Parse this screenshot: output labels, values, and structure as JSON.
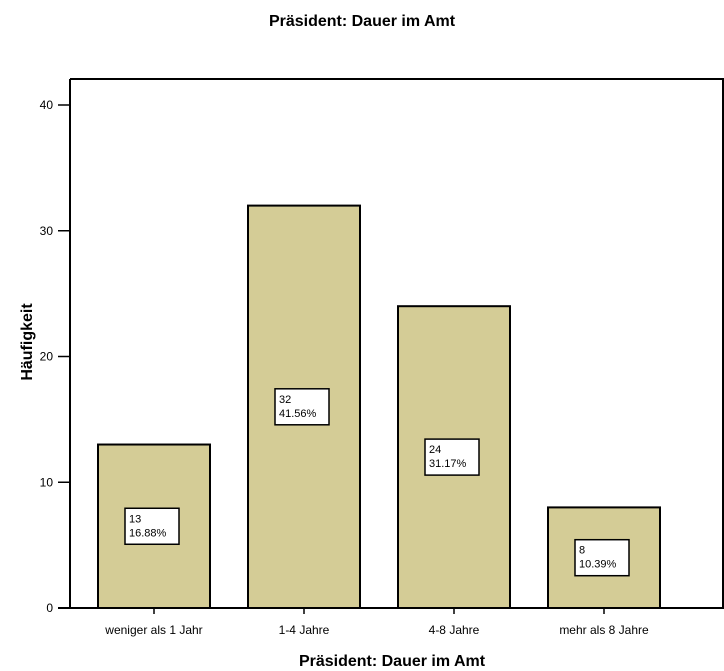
{
  "chart_data": {
    "type": "bar",
    "title": "Präsident: Dauer im Amt",
    "xlabel": "Präsident: Dauer im Amt",
    "ylabel": "Häufigkeit",
    "categories": [
      "weniger als 1 Jahr",
      "1-4 Jahre",
      "4-8 Jahre",
      "mehr als 8 Jahre"
    ],
    "values": [
      13,
      32,
      24,
      8
    ],
    "data_labels": [
      {
        "count": "13",
        "percent": "16.88%"
      },
      {
        "count": "32",
        "percent": "41.56%"
      },
      {
        "count": "24",
        "percent": "31.17%"
      },
      {
        "count": "8",
        "percent": "10.39%"
      }
    ],
    "ylim": [
      0,
      40
    ],
    "yticks": [
      "0",
      "10",
      "20",
      "30",
      "40"
    ],
    "grid": false,
    "bar_color": "#d4cc96"
  }
}
